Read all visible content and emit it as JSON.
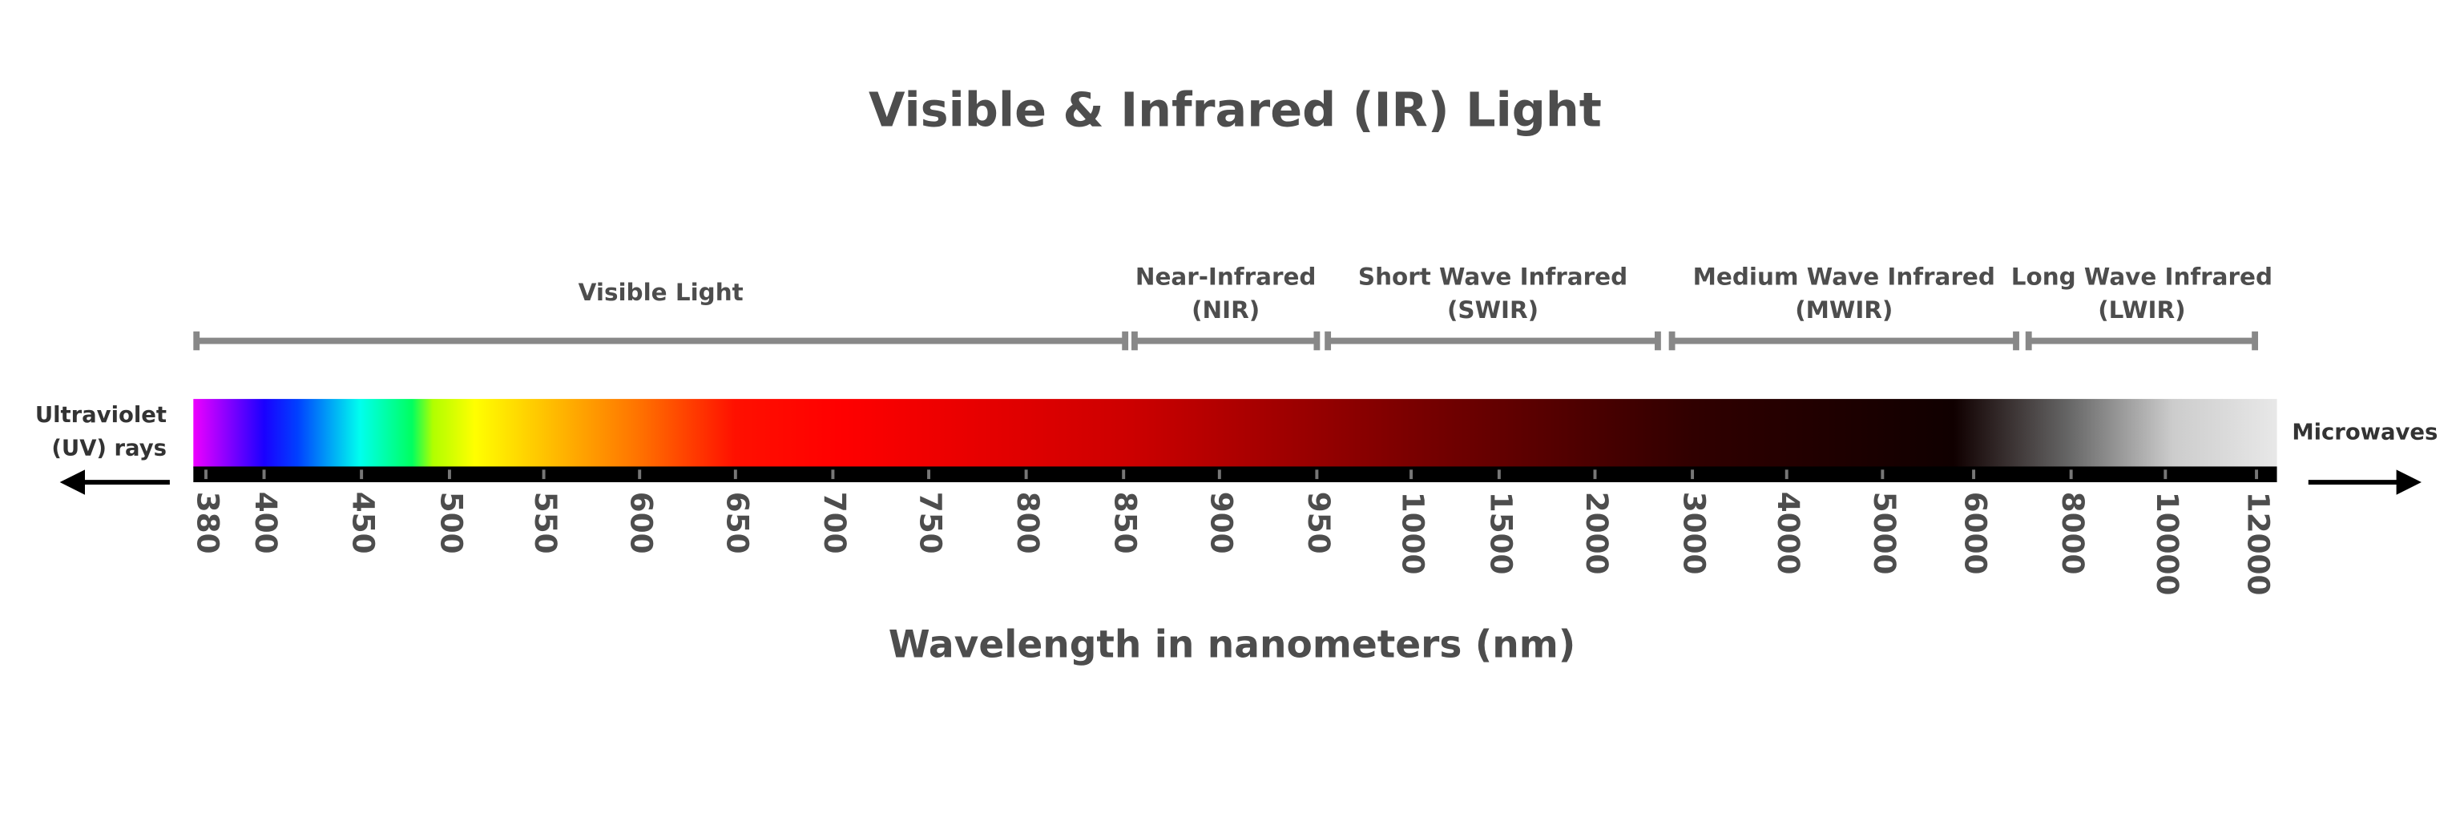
{
  "title": "Visible & Infrared (IR) Light",
  "axis_label": "Wavelength in nanometers (nm)",
  "left_label": [
    "Ultraviolet",
    "(UV) rays"
  ],
  "right_label": "Microwaves",
  "bands": [
    {
      "label": [
        "Visible Light"
      ]
    },
    {
      "label": [
        "Near-Infrared",
        "(NIR)"
      ]
    },
    {
      "label": [
        "Short Wave Infrared",
        "(SWIR)"
      ]
    },
    {
      "label": [
        "Medium Wave Infrared",
        "(MWIR)"
      ]
    },
    {
      "label": [
        "Long Wave Infrared",
        "(LWIR)"
      ]
    }
  ],
  "ticks": [
    "380",
    "400",
    "450",
    "500",
    "550",
    "600",
    "650",
    "700",
    "750",
    "800",
    "850",
    "900",
    "950",
    "1000",
    "1500",
    "2000",
    "3000",
    "4000",
    "5000",
    "6000",
    "8000",
    "10000",
    "12000"
  ]
}
